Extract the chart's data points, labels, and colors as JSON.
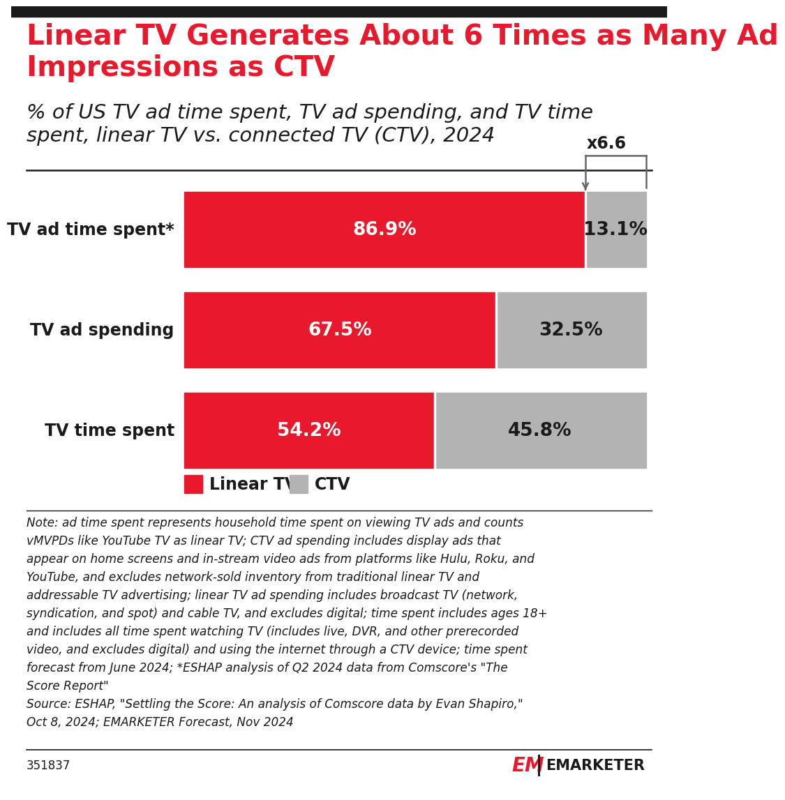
{
  "title": "Linear TV Generates About 6 Times as Many Ad\nImpressions as CTV",
  "subtitle": "% of US TV ad time spent, TV ad spending, and TV time\nspent, linear TV vs. connected TV (CTV), 2024",
  "categories": [
    "TV ad time spent*",
    "TV ad spending",
    "TV time spent"
  ],
  "linear_tv_values": [
    86.9,
    67.5,
    54.2
  ],
  "ctv_values": [
    13.1,
    32.5,
    45.8
  ],
  "linear_tv_color": "#e8192c",
  "ctv_color": "#b3b3b3",
  "bar_label_color_linear": "#ffffff",
  "bar_label_color_ctv": "#1a1a1a",
  "multiplier_label": "x6.6",
  "note_line1": "Note: ad time spent represents household time spent on viewing TV ads and counts",
  "note_line2": "vMVPDs like YouTube TV as linear TV; CTV ad spending includes display ads that",
  "note_line3": "appear on home screens and in-stream video ads from platforms like Hulu, Roku, and",
  "note_line4": "YouTube, and excludes network-sold inventory from traditional linear TV and",
  "note_line5": "addressable TV advertising; linear TV ad spending includes broadcast TV (network,",
  "note_line6": "syndication, and spot) and cable TV, and excludes digital; time spent includes ages 18+",
  "note_line7": "and includes all time spent watching TV (includes live, DVR, and other prerecorded",
  "note_line8": "video, and excludes digital) and using the internet through a CTV device; time spent",
  "note_line9": "forecast from June 2024; *ESHAP analysis of Q2 2024 data from Comscore's \"The",
  "note_line10": "Score Report\"",
  "note_line11": "Source: ESHAP, \"Settling the Score: An analysis of Comscore data by Evan Shapiro,\"",
  "note_line12": "Oct 8, 2024; EMARKETER Forecast, Nov 2024",
  "footer_id": "351837",
  "background_color": "#ffffff",
  "title_color": "#e8192c",
  "subtitle_color": "#1a1a1a",
  "top_bar_color": "#1a1a1a",
  "legend_linear": "Linear TV",
  "legend_ctv": "CTV"
}
